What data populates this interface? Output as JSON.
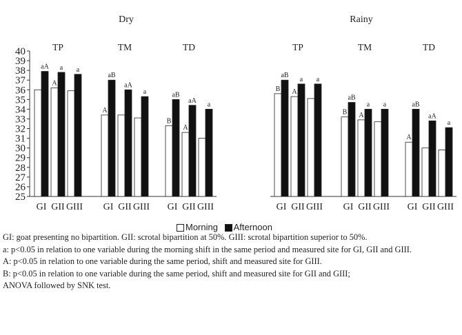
{
  "chart_data": {
    "type": "bar",
    "panels": [
      {
        "title": "Dry",
        "sites": [
          {
            "name": "TP",
            "categories": [
              "GI",
              "GII",
              "GIII"
            ],
            "series": [
              {
                "name": "Morning",
                "values": [
                  36.0,
                  36.2,
                  35.9
                ],
                "labels": [
                  "",
                  "A",
                  ""
                ]
              },
              {
                "name": "Afternoon",
                "values": [
                  37.9,
                  37.8,
                  37.6
                ],
                "labels": [
                  "aA",
                  "a",
                  "a"
                ]
              }
            ]
          },
          {
            "name": "TM",
            "categories": [
              "GI",
              "GII",
              "GIII"
            ],
            "series": [
              {
                "name": "Morning",
                "values": [
                  33.4,
                  33.4,
                  33.1
                ],
                "labels": [
                  "A",
                  "",
                  ""
                ]
              },
              {
                "name": "Afternoon",
                "values": [
                  37.0,
                  36.0,
                  35.3
                ],
                "labels": [
                  "aB",
                  "aA",
                  "a"
                ]
              }
            ]
          },
          {
            "name": "TD",
            "categories": [
              "GI",
              "GII",
              "GIII"
            ],
            "series": [
              {
                "name": "Morning",
                "values": [
                  32.3,
                  31.6,
                  31.0
                ],
                "labels": [
                  "B",
                  "A",
                  ""
                ]
              },
              {
                "name": "Afternoon",
                "values": [
                  35.0,
                  34.4,
                  34.0
                ],
                "labels": [
                  "aB",
                  "aA",
                  "a"
                ]
              }
            ]
          }
        ]
      },
      {
        "title": "Rainy",
        "sites": [
          {
            "name": "TP",
            "categories": [
              "GI",
              "GII",
              "GIII"
            ],
            "series": [
              {
                "name": "Morning",
                "values": [
                  35.6,
                  35.3,
                  35.1
                ],
                "labels": [
                  "B",
                  "A",
                  ""
                ]
              },
              {
                "name": "Afternoon",
                "values": [
                  37.0,
                  36.6,
                  36.6
                ],
                "labels": [
                  "aB",
                  "a",
                  "a"
                ]
              }
            ]
          },
          {
            "name": "TM",
            "categories": [
              "GI",
              "GII",
              "GIII"
            ],
            "series": [
              {
                "name": "Morning",
                "values": [
                  33.2,
                  32.9,
                  32.7
                ],
                "labels": [
                  "B",
                  "A",
                  ""
                ]
              },
              {
                "name": "Afternoon",
                "values": [
                  34.7,
                  34.0,
                  34.0
                ],
                "labels": [
                  "aB",
                  "a",
                  "a"
                ]
              }
            ]
          },
          {
            "name": "TD",
            "categories": [
              "GI",
              "GII",
              "GIII"
            ],
            "series": [
              {
                "name": "Morning",
                "values": [
                  30.6,
                  30.0,
                  29.8
                ],
                "labels": [
                  "A",
                  "",
                  ""
                ]
              },
              {
                "name": "Afternoon",
                "values": [
                  34.0,
                  32.8,
                  32.1
                ],
                "labels": [
                  "aB",
                  "aA",
                  "a"
                ]
              }
            ]
          }
        ]
      }
    ],
    "yaxis": {
      "min": 25,
      "max": 40,
      "step": 1,
      "ticks": [
        "25",
        "26",
        "27",
        "28",
        "29",
        "30",
        "31",
        "32",
        "33",
        "34",
        "35",
        "36",
        "37",
        "38",
        "39",
        "40"
      ]
    },
    "legend": {
      "placement": "bottom",
      "items": [
        {
          "label": "Morning",
          "fill": "#ffffff"
        },
        {
          "label": "Afternoon",
          "fill": "#111111"
        }
      ]
    },
    "colors": {
      "morning": "#ffffff",
      "afternoon": "#111111",
      "stroke": "#222222"
    },
    "grid": false
  },
  "notes": [
    "GI: goat presenting no bipartition. GII: scrotal bipartition at 50%. GIII: scrotal bipartition superior to 50%.",
    "a: p<0.05 in relation to one variable during the morning shift in the same period and measured site for GI, GII and GIII.",
    "A: p<0.05 in relation to one variable during the same period, shift and measured site for GIII.",
    "B: p<0.05 in relation to one variable during the same period, shift and measured site for GII and GIII;",
    "ANOVA followed by SNK test."
  ]
}
